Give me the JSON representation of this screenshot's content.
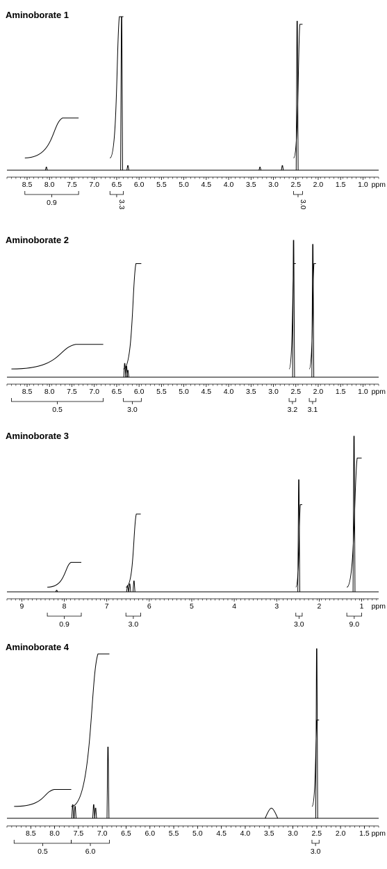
{
  "chart_data": [
    {
      "type": "line",
      "title": "Aminoborate 1",
      "xlabel": "ppm",
      "x_reversed": true,
      "xlim": [
        0.65,
        8.95
      ],
      "ticks": [
        "8.5",
        "8.0",
        "7.5",
        "7.0",
        "6.5",
        "6.0",
        "5.5",
        "5.0",
        "4.5",
        "4.0",
        "3.5",
        "3.0",
        "2.5",
        "2.0",
        "1.5",
        "1.0"
      ],
      "tick_values": [
        8.5,
        8.0,
        7.5,
        7.0,
        6.5,
        6.0,
        5.5,
        5.0,
        4.5,
        4.0,
        3.5,
        3.0,
        2.5,
        2.0,
        1.5,
        1.0
      ],
      "peaks": [
        {
          "ppm": 8.07,
          "height": 0.02
        },
        {
          "ppm": 6.39,
          "height": 1.0
        },
        {
          "ppm": 6.25,
          "height": 0.03
        },
        {
          "ppm": 3.3,
          "height": 0.02
        },
        {
          "ppm": 2.8,
          "height": 0.03
        },
        {
          "ppm": 2.47,
          "height": 0.97
        }
      ],
      "integrals": [
        {
          "from": 8.55,
          "to": 7.35,
          "start": 0.08,
          "end": 0.34,
          "label": "0.9",
          "rotated": false
        },
        {
          "from": 6.65,
          "to": 6.35,
          "start": 0.08,
          "end": 1.0,
          "label": "3.3",
          "rotated": true
        },
        {
          "from": 2.55,
          "to": 2.35,
          "start": 0.08,
          "end": 0.95,
          "label": "3.0",
          "rotated": true
        }
      ]
    },
    {
      "type": "line",
      "title": "Aminoborate 2",
      "xlabel": "ppm",
      "x_reversed": true,
      "xlim": [
        0.65,
        8.95
      ],
      "ticks": [
        "8.5",
        "8.0",
        "7.5",
        "7.0",
        "6.5",
        "6.0",
        "5.5",
        "5.0",
        "4.5",
        "4.0",
        "3.5",
        "3.0",
        "2.5",
        "2.0",
        "1.5",
        "1.0"
      ],
      "tick_values": [
        8.5,
        8.0,
        7.5,
        7.0,
        6.5,
        6.0,
        5.5,
        5.0,
        4.5,
        4.0,
        3.5,
        3.0,
        2.5,
        2.0,
        1.5,
        1.0
      ],
      "peaks": [
        {
          "ppm": 6.32,
          "height": 0.1
        },
        {
          "ppm": 6.28,
          "height": 0.08
        },
        {
          "ppm": 6.25,
          "height": 0.05
        },
        {
          "ppm": 2.55,
          "height": 1.0
        },
        {
          "ppm": 2.12,
          "height": 0.97
        }
      ],
      "integrals": [
        {
          "from": 8.85,
          "to": 6.8,
          "start": 0.06,
          "end": 0.24,
          "label": "0.5",
          "rotated": false
        },
        {
          "from": 6.35,
          "to": 5.95,
          "start": 0.06,
          "end": 0.83,
          "label": "3.0",
          "rotated": false
        },
        {
          "from": 2.65,
          "to": 2.5,
          "start": 0.06,
          "end": 0.83,
          "label": "3.2",
          "rotated": false
        },
        {
          "from": 2.2,
          "to": 2.05,
          "start": 0.06,
          "end": 0.83,
          "label": "3.1",
          "rotated": false
        }
      ]
    },
    {
      "type": "line",
      "title": "Aminoborate 3",
      "xlabel": "ppm",
      "x_reversed": true,
      "xlim": [
        0.6,
        9.35
      ],
      "ticks": [
        "9",
        "8",
        "7",
        "6",
        "5",
        "4",
        "3",
        "2",
        "1"
      ],
      "tick_values": [
        9,
        8,
        7,
        6,
        5,
        4,
        3,
        2,
        1
      ],
      "peaks": [
        {
          "ppm": 8.18,
          "height": 0.01
        },
        {
          "ppm": 6.51,
          "height": 0.04
        },
        {
          "ppm": 6.46,
          "height": 0.05
        },
        {
          "ppm": 6.36,
          "height": 0.07
        },
        {
          "ppm": 2.48,
          "height": 0.72
        },
        {
          "ppm": 1.18,
          "height": 1.0
        }
      ],
      "integrals": [
        {
          "from": 8.4,
          "to": 7.6,
          "start": 0.03,
          "end": 0.19,
          "label": "0.9",
          "rotated": false
        },
        {
          "from": 6.55,
          "to": 6.2,
          "start": 0.03,
          "end": 0.5,
          "label": "3.0",
          "rotated": false
        },
        {
          "from": 2.55,
          "to": 2.4,
          "start": 0.03,
          "end": 0.56,
          "label": "3.0",
          "rotated": false
        },
        {
          "from": 1.35,
          "to": 1.0,
          "start": 0.03,
          "end": 0.86,
          "label": "9.0",
          "rotated": false
        }
      ]
    },
    {
      "type": "line",
      "title": "Aminoborate 4",
      "xlabel": "ppm",
      "x_reversed": true,
      "xlim": [
        1.2,
        9.0
      ],
      "ticks": [
        "8.5",
        "8.0",
        "7.5",
        "7.0",
        "6.5",
        "6.0",
        "5.5",
        "5.0",
        "4.5",
        "4.0",
        "3.5",
        "3.0",
        "2.5",
        "2.0",
        "1.5"
      ],
      "tick_values": [
        8.5,
        8.0,
        7.5,
        7.0,
        6.5,
        6.0,
        5.5,
        5.0,
        4.5,
        4.0,
        3.5,
        3.0,
        2.5,
        2.0,
        1.5
      ],
      "peaks": [
        {
          "ppm": 7.62,
          "height": 0.08
        },
        {
          "ppm": 7.57,
          "height": 0.07
        },
        {
          "ppm": 7.18,
          "height": 0.08
        },
        {
          "ppm": 7.14,
          "height": 0.06
        },
        {
          "ppm": 6.88,
          "height": 0.42
        },
        {
          "ppm": 3.45,
          "height": 0.06,
          "broad": true
        },
        {
          "ppm": 2.5,
          "height": 1.0
        }
      ],
      "integrals": [
        {
          "from": 8.85,
          "to": 7.65,
          "start": 0.07,
          "end": 0.17,
          "label": "0.5",
          "rotated": false
        },
        {
          "from": 7.65,
          "to": 6.85,
          "start": 0.07,
          "end": 0.97,
          "label": "6.0",
          "rotated": false
        },
        {
          "from": 2.6,
          "to": 2.45,
          "start": 0.07,
          "end": 0.58,
          "label": "3.0",
          "rotated": false
        }
      ]
    }
  ]
}
